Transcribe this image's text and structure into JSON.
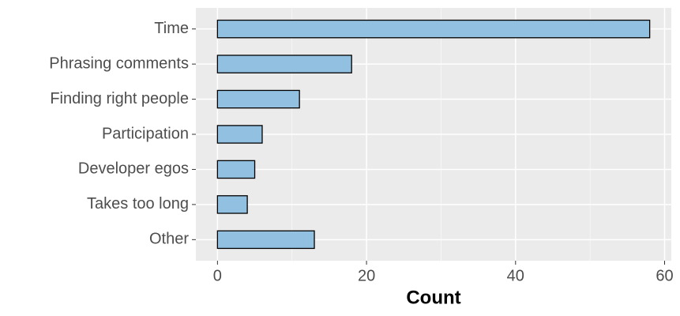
{
  "chart_data": {
    "type": "barh",
    "categories": [
      "Time",
      "Phrasing comments",
      "Finding right people",
      "Participation",
      "Developer egos",
      "Takes too long",
      "Other"
    ],
    "values": [
      58,
      18,
      11,
      6,
      5,
      4,
      13
    ],
    "color": "#91c0e0",
    "xlabel": "Count",
    "xlim": [
      -2.9,
      60.9
    ],
    "xticks": [
      0,
      20,
      40,
      60
    ],
    "xminorticks": [
      10,
      30,
      50
    ],
    "grid": true
  }
}
